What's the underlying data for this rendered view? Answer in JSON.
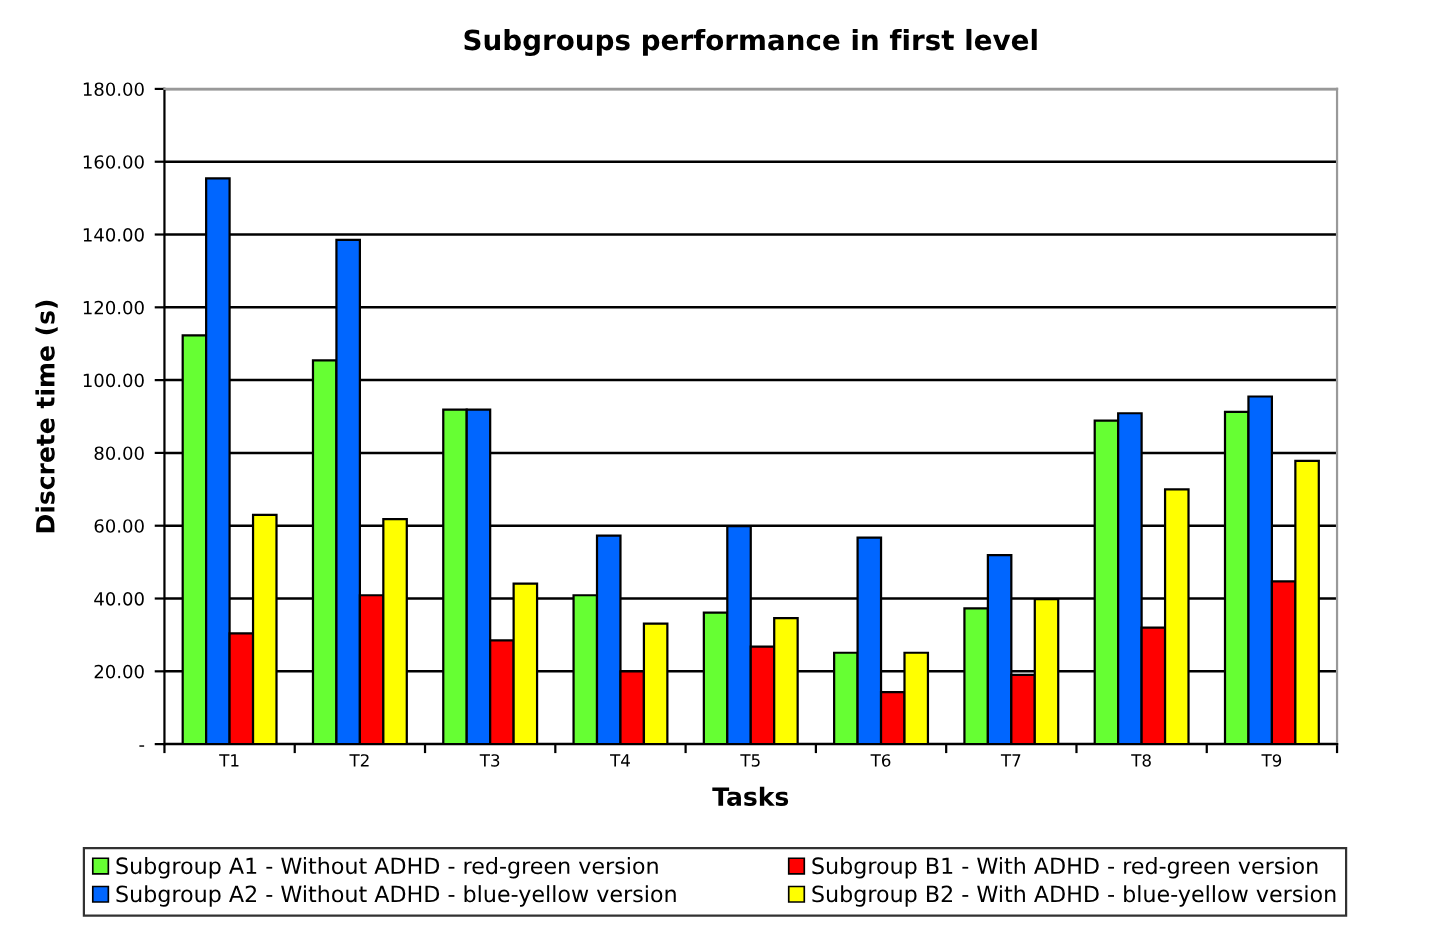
{
  "chart_data": {
    "type": "bar",
    "title": "Subgroups performance in first level",
    "xlabel": "Tasks",
    "ylabel": "Discrete time (s)",
    "categories": [
      "T1",
      "T2",
      "T3",
      "T4",
      "T5",
      "T6",
      "T7",
      "T8",
      "T9"
    ],
    "series": [
      {
        "name": "Subgroup A1 - Without ADHD - red-green version",
        "color": "#66ff33",
        "values": [
          112.3,
          105.4,
          91.9,
          40.9,
          36.1,
          25.1,
          37.3,
          88.9,
          91.3
        ]
      },
      {
        "name": "Subgroup A2 - Without ADHD - blue-yellow version",
        "color": "#0066ff",
        "values": [
          155.4,
          138.5,
          91.9,
          57.3,
          59.9,
          56.7,
          51.9,
          90.9,
          95.5
        ]
      },
      {
        "name": "Subgroup B1 - With ADHD - red-green version",
        "color": "#ff0000",
        "values": [
          30.4,
          40.9,
          28.5,
          20.0,
          26.8,
          14.3,
          19.0,
          32.0,
          44.7
        ]
      },
      {
        "name": "Subgroup B2 - With ADHD - blue-yellow version",
        "color": "#ffff00",
        "values": [
          63.0,
          61.8,
          44.1,
          33.1,
          34.6,
          25.1,
          39.8,
          70.0,
          77.8
        ]
      }
    ],
    "ylim": [
      0,
      180
    ],
    "yticks": [
      {
        "value": 0,
        "label": "-"
      },
      {
        "value": 20,
        "label": "20.00"
      },
      {
        "value": 40,
        "label": "40.00"
      },
      {
        "value": 60,
        "label": "60.00"
      },
      {
        "value": 80,
        "label": "80.00"
      },
      {
        "value": 100,
        "label": "100.00"
      },
      {
        "value": 120,
        "label": "120.00"
      },
      {
        "value": 140,
        "label": "140.00"
      },
      {
        "value": 160,
        "label": "160.00"
      },
      {
        "value": 180,
        "label": "180.00"
      }
    ],
    "grid": "y",
    "legend": "bottom"
  }
}
